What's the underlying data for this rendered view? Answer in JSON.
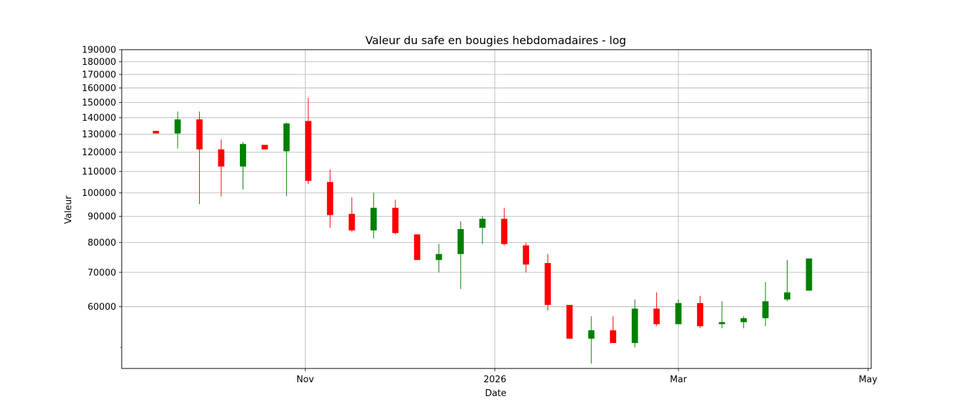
{
  "chart_data": {
    "type": "candlestick",
    "title": "Valeur du safe en bougies hebdomadaires - log",
    "xlabel": "Date",
    "ylabel": "Valeur",
    "yscale": "log",
    "ylim": [
      45500,
      190000
    ],
    "xlim": [
      "2025-09-03",
      "2026-05-02"
    ],
    "grid": true,
    "colors": {
      "up": "#008000",
      "down": "#ff0000"
    },
    "y_ticks": [
      190000,
      180000,
      170000,
      160000,
      150000,
      140000,
      130000,
      120000,
      110000,
      100000,
      90000,
      80000,
      70000,
      60000
    ],
    "y_tick_labels": [
      "190000",
      "180000",
      "170000",
      "160000",
      "150000",
      "140000",
      "130000",
      "120000",
      "110000",
      "100000",
      "90000",
      "80000",
      "70000",
      "60000"
    ],
    "y_minor_ticks": [
      50000
    ],
    "x_ticks": [
      {
        "date": "2025-11-01",
        "label": "Nov"
      },
      {
        "date": "2026-01-01",
        "label": "2026"
      },
      {
        "date": "2026-03-01",
        "label": "Mar"
      },
      {
        "date": "2026-05-01",
        "label": "May"
      }
    ],
    "candles": [
      {
        "date": "2025-09-14",
        "open": 132000,
        "high": 132000,
        "low": 130500,
        "close": 130500
      },
      {
        "date": "2025-09-21",
        "open": 130500,
        "high": 144000,
        "low": 122000,
        "close": 139000
      },
      {
        "date": "2025-09-28",
        "open": 139000,
        "high": 144000,
        "low": 95000,
        "close": 121500
      },
      {
        "date": "2025-10-05",
        "open": 121500,
        "high": 127000,
        "low": 98500,
        "close": 112500
      },
      {
        "date": "2025-10-12",
        "open": 112500,
        "high": 125500,
        "low": 101500,
        "close": 124500
      },
      {
        "date": "2025-10-19",
        "open": 124000,
        "high": 124000,
        "low": 121500,
        "close": 121500
      },
      {
        "date": "2025-10-26",
        "open": 120500,
        "high": 137000,
        "low": 98500,
        "close": 136500
      },
      {
        "date": "2025-11-02",
        "open": 138000,
        "high": 153000,
        "low": 104000,
        "close": 105500
      },
      {
        "date": "2025-11-09",
        "open": 105000,
        "high": 111000,
        "low": 85500,
        "close": 90500
      },
      {
        "date": "2025-11-16",
        "open": 91000,
        "high": 98000,
        "low": 84000,
        "close": 84500
      },
      {
        "date": "2025-11-23",
        "open": 84500,
        "high": 100000,
        "low": 81500,
        "close": 93500
      },
      {
        "date": "2025-11-30",
        "open": 93500,
        "high": 97000,
        "low": 83000,
        "close": 83500
      },
      {
        "date": "2025-12-07",
        "open": 83000,
        "high": 83000,
        "low": 74000,
        "close": 74000
      },
      {
        "date": "2025-12-14",
        "open": 74000,
        "high": 79500,
        "low": 70000,
        "close": 76000
      },
      {
        "date": "2025-12-21",
        "open": 76000,
        "high": 88000,
        "low": 65000,
        "close": 85000
      },
      {
        "date": "2025-12-28",
        "open": 85500,
        "high": 90000,
        "low": 79500,
        "close": 89000
      },
      {
        "date": "2026-01-04",
        "open": 89000,
        "high": 93500,
        "low": 79000,
        "close": 79500
      },
      {
        "date": "2026-01-11",
        "open": 79000,
        "high": 80000,
        "low": 70000,
        "close": 72500
      },
      {
        "date": "2026-01-18",
        "open": 73000,
        "high": 76000,
        "low": 59000,
        "close": 60500
      },
      {
        "date": "2026-01-25",
        "open": 60500,
        "high": 60500,
        "low": 52000,
        "close": 52000
      },
      {
        "date": "2026-02-01",
        "open": 52000,
        "high": 57500,
        "low": 46500,
        "close": 54000
      },
      {
        "date": "2026-02-08",
        "open": 54000,
        "high": 57500,
        "low": 51000,
        "close": 51000
      },
      {
        "date": "2026-02-15",
        "open": 51000,
        "high": 62000,
        "low": 50000,
        "close": 59500
      },
      {
        "date": "2026-02-22",
        "open": 59500,
        "high": 64000,
        "low": 55000,
        "close": 55500
      },
      {
        "date": "2026-03-01",
        "open": 55500,
        "high": 62000,
        "low": 55500,
        "close": 61000
      },
      {
        "date": "2026-03-08",
        "open": 61000,
        "high": 63000,
        "low": 54500,
        "close": 55000
      },
      {
        "date": "2026-03-15",
        "open": 55500,
        "high": 61500,
        "low": 54500,
        "close": 56000
      },
      {
        "date": "2026-03-22",
        "open": 56000,
        "high": 57500,
        "low": 54500,
        "close": 57000
      },
      {
        "date": "2026-03-29",
        "open": 57000,
        "high": 67000,
        "low": 55000,
        "close": 61500
      },
      {
        "date": "2026-04-05",
        "open": 62000,
        "high": 74000,
        "low": 61500,
        "close": 64000
      },
      {
        "date": "2026-04-12",
        "open": 64500,
        "high": 74500,
        "low": 64500,
        "close": 74500
      }
    ]
  }
}
